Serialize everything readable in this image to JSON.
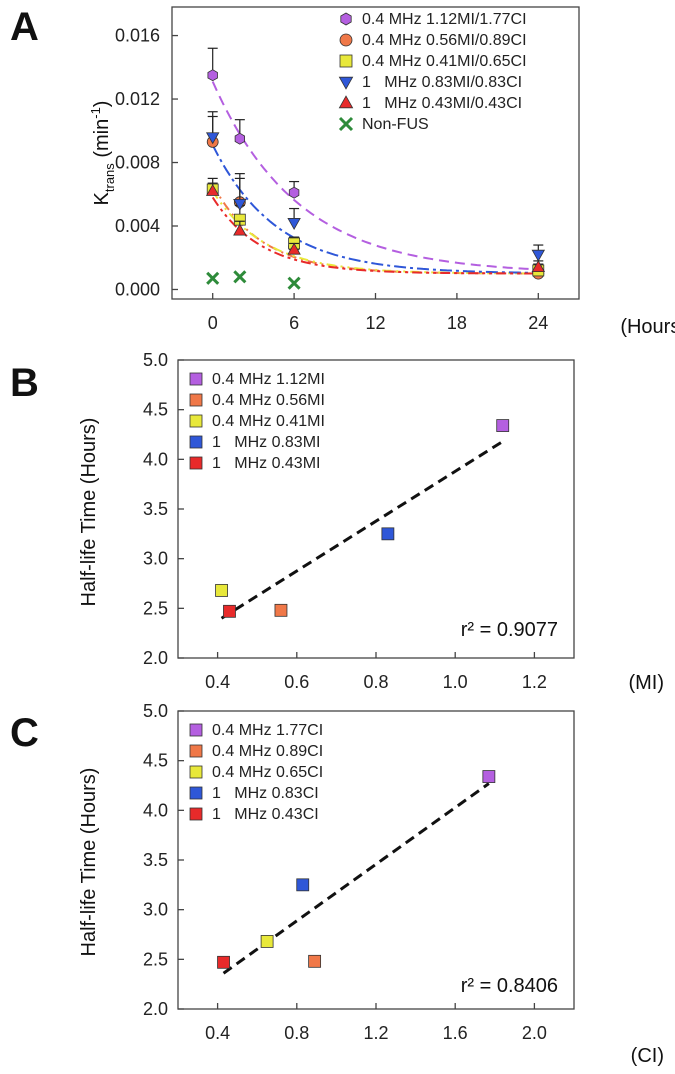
{
  "chart_data": [
    {
      "panel": "A",
      "type": "line",
      "title": "",
      "ylabel_main": "K",
      "ylabel_sub": "trans",
      "ylabel_unit_pre": " (min",
      "ylabel_unit_sup": "-1",
      "ylabel_unit_post": ")",
      "xlabel": "(Hours)",
      "xlim": [
        -3,
        27
      ],
      "ylim": [
        -0.0006,
        0.0178
      ],
      "xticks": [
        0,
        6,
        12,
        18,
        24
      ],
      "yticks": [
        0.0,
        0.004,
        0.008,
        0.012,
        0.016
      ],
      "ytick_labels": [
        "0.000",
        "0.004",
        "0.008",
        "0.012",
        "0.016"
      ],
      "series": [
        {
          "name": "0.4 MHz 1.12MI/1.77CI",
          "marker": "hexagon",
          "color": "#b45fe0",
          "x": [
            0,
            2,
            6,
            24
          ],
          "y": [
            0.0135,
            0.0095,
            0.0061,
            0.0011
          ],
          "err": [
            0.0017,
            0.0012,
            0.0007,
            0.0005
          ],
          "fit_y0": 0.0131,
          "fit_half_life": 4.34,
          "fit_baseline": 0.001
        },
        {
          "name": "0.4 MHz 0.56MI/0.89CI",
          "marker": "circle",
          "color": "#f07848",
          "x": [
            0,
            2,
            6,
            24
          ],
          "y": [
            0.0093,
            0.0055,
            0.0027,
            0.001
          ],
          "err": [
            0.0016,
            0.0015,
            0.0006,
            0.0004
          ],
          "fit_y0": 0.0066,
          "fit_half_life": 2.48,
          "fit_baseline": 0.001
        },
        {
          "name": "0.4 MHz 0.41MI/0.65CI",
          "marker": "square",
          "color": "#e8e83a",
          "x": [
            0,
            2,
            6,
            24
          ],
          "y": [
            0.0063,
            0.0044,
            0.0029,
            0.0012
          ],
          "err": [
            0.0007,
            0.0009,
            0.0004,
            0.0004
          ],
          "fit_y0": 0.0062,
          "fit_half_life": 2.68,
          "fit_baseline": 0.001
        },
        {
          "name": "1   MHz 0.83MI/0.83CI",
          "marker": "triangle-down",
          "color": "#2f57d8",
          "x": [
            0,
            2,
            6,
            24
          ],
          "y": [
            0.0096,
            0.0054,
            0.0042,
            0.0022
          ],
          "err": [
            0.0016,
            0.0019,
            0.0009,
            0.0006
          ],
          "fit_y0": 0.0091,
          "fit_half_life": 3.25,
          "fit_baseline": 0.001
        },
        {
          "name": "1   MHz 0.43MI/0.43CI",
          "marker": "triangle-up",
          "color": "#e82a2a",
          "x": [
            0,
            2,
            6,
            24
          ],
          "y": [
            0.0062,
            0.0037,
            0.0025,
            0.0014
          ],
          "err": [
            0.0005,
            0.0006,
            0.0004,
            0.0004
          ],
          "fit_y0": 0.0058,
          "fit_half_life": 2.47,
          "fit_baseline": 0.001
        },
        {
          "name": "Non-FUS",
          "marker": "x",
          "color": "#2e8b3a",
          "x": [
            0,
            2,
            6
          ],
          "y": [
            0.0007,
            0.0008,
            0.0004
          ],
          "err": [
            0,
            0,
            0
          ]
        }
      ]
    },
    {
      "panel": "B",
      "type": "scatter",
      "title": "",
      "ylabel": "Half-life  Time (Hours)",
      "xlabel": "(MI)",
      "xlim": [
        0.3,
        1.3
      ],
      "ylim": [
        2.0,
        5.0
      ],
      "xticks": [
        0.4,
        0.6,
        0.8,
        1.0,
        1.2
      ],
      "xtick_labels": [
        "0.4",
        "0.6",
        "0.8",
        "1.0",
        "1.2"
      ],
      "yticks": [
        2.0,
        2.5,
        3.0,
        3.5,
        4.0,
        4.5,
        5.0
      ],
      "ytick_labels": [
        "2.0",
        "2.5",
        "3.0",
        "3.5",
        "4.0",
        "4.5",
        "5.0"
      ],
      "r2": "r² = 0.9077",
      "fit_line": {
        "x": [
          0.41,
          1.12
        ],
        "y": [
          2.4,
          4.18
        ]
      },
      "points": [
        {
          "name": "0.4 MHz 1.12MI",
          "x": 1.12,
          "y": 4.34,
          "color": "#b45fe0"
        },
        {
          "name": "0.4 MHz 0.56MI",
          "x": 0.56,
          "y": 2.48,
          "color": "#f07848"
        },
        {
          "name": "0.4 MHz 0.41MI",
          "x": 0.41,
          "y": 2.68,
          "color": "#e8e83a"
        },
        {
          "name": "1   MHz 0.83MI",
          "x": 0.83,
          "y": 3.25,
          "color": "#2f57d8"
        },
        {
          "name": "1   MHz 0.43MI",
          "x": 0.43,
          "y": 2.47,
          "color": "#e82a2a"
        }
      ]
    },
    {
      "panel": "C",
      "type": "scatter",
      "title": "",
      "ylabel": "Half-life  Time (Hours)",
      "xlabel": "(CI)",
      "xlim": [
        0.2,
        2.2
      ],
      "ylim": [
        2.0,
        5.0
      ],
      "xticks": [
        0.4,
        0.8,
        1.2,
        1.6,
        2.0
      ],
      "xtick_labels": [
        "0.4",
        "0.8",
        "1.2",
        "1.6",
        "2.0"
      ],
      "yticks": [
        2.0,
        2.5,
        3.0,
        3.5,
        4.0,
        4.5,
        5.0
      ],
      "ytick_labels": [
        "2.0",
        "2.5",
        "3.0",
        "3.5",
        "4.0",
        "4.5",
        "5.0"
      ],
      "r2": "r² = 0.8406",
      "fit_line": {
        "x": [
          0.43,
          1.77
        ],
        "y": [
          2.36,
          4.27
        ]
      },
      "points": [
        {
          "name": "0.4 MHz 1.77CI",
          "x": 1.77,
          "y": 4.34,
          "color": "#b45fe0"
        },
        {
          "name": "0.4 MHz 0.89CI",
          "x": 0.89,
          "y": 2.48,
          "color": "#f07848"
        },
        {
          "name": "0.4 MHz 0.65CI",
          "x": 0.65,
          "y": 2.68,
          "color": "#e8e83a"
        },
        {
          "name": "1   MHz 0.83CI",
          "x": 0.83,
          "y": 3.25,
          "color": "#2f57d8"
        },
        {
          "name": "1   MHz 0.43CI",
          "x": 0.43,
          "y": 2.47,
          "color": "#e82a2a"
        }
      ]
    }
  ]
}
